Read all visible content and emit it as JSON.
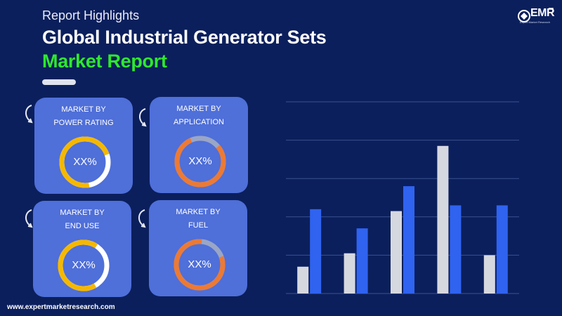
{
  "header": {
    "subtitle": "Report Highlights",
    "title_line1": "Global Industrial Generator Sets",
    "title_line2": "Market Report"
  },
  "logo": {
    "text": "EMR",
    "tagline": "Expert Market Research"
  },
  "cards": [
    {
      "label": "MARKET BY\nPOWER RATING",
      "value": "XX%",
      "color": "#f5b800"
    },
    {
      "label": "MARKET BY\nAPPLICATION",
      "value": "XX%",
      "color": "#ec7a35"
    },
    {
      "label": "MARKET BY\nEND USE",
      "value": "XX%",
      "color": "#f5b800"
    },
    {
      "label": "MARKET BY\nFUEL",
      "value": "XX%",
      "color": "#ec7a35"
    }
  ],
  "chart_data": {
    "type": "bar",
    "categories": [
      "",
      "",
      "",
      "",
      ""
    ],
    "series": [
      {
        "values": [
          0.7,
          1.05,
          2.15,
          3.85,
          1.0
        ],
        "color": "#d6d8e0"
      },
      {
        "values": [
          2.2,
          1.7,
          2.8,
          2.3,
          2.3
        ],
        "color": "#2f63f0"
      }
    ],
    "ylim": [
      0,
      5
    ],
    "grid": true
  },
  "footer": {
    "url": "www.expertmarketresearch.com"
  }
}
